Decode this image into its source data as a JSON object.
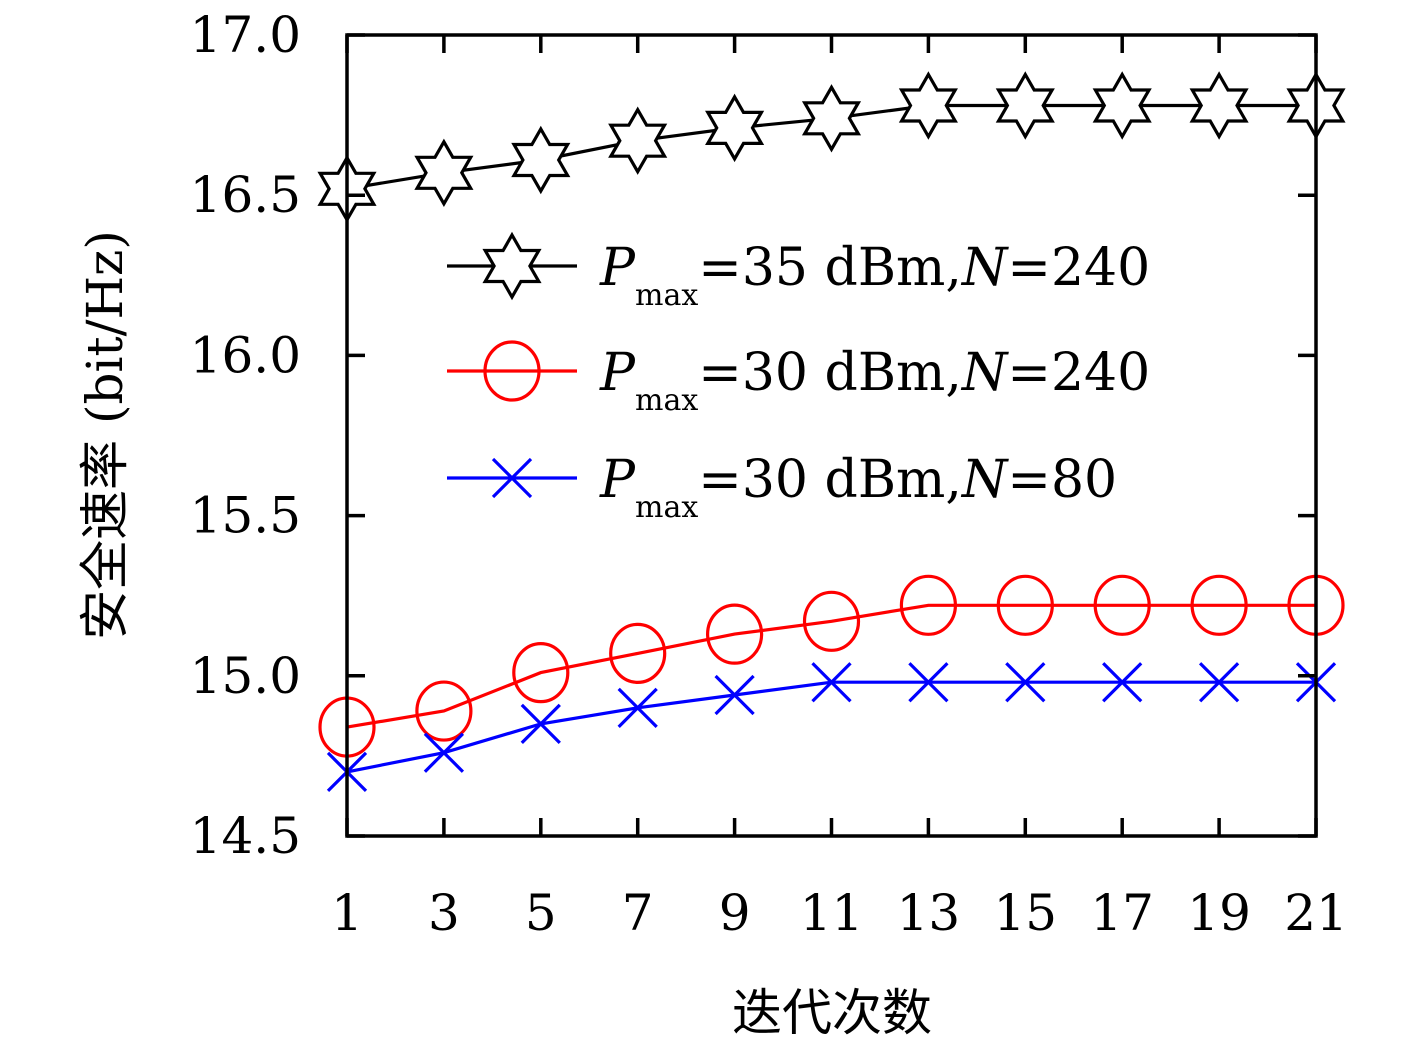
{
  "chart_data": {
    "type": "line",
    "title": "",
    "xlabel": "迭代次数",
    "ylabel": "安全速率 (bit/Hz)",
    "x": [
      1,
      3,
      5,
      7,
      9,
      11,
      13,
      15,
      17,
      19,
      21
    ],
    "x_tick_labels": [
      "1",
      "3",
      "5",
      "7",
      "9",
      "11",
      "13",
      "15",
      "17",
      "19",
      "21"
    ],
    "xlim": [
      1,
      21
    ],
    "ylim": [
      14.5,
      17.0
    ],
    "y_ticks": [
      14.5,
      15.0,
      15.5,
      16.0,
      16.5,
      17.0
    ],
    "y_tick_labels": [
      "14.5",
      "15.0",
      "15.5",
      "16.0",
      "16.5",
      "17.0"
    ],
    "grid": false,
    "legend_position": "upper-center",
    "series": [
      {
        "label_parts": {
          "var": "P",
          "sub": "max",
          "mid": "=35 dBm,",
          "var2": "N",
          "tail": "=240"
        },
        "color": "#000000",
        "marker": "hexagram",
        "values": [
          16.52,
          16.57,
          16.61,
          16.67,
          16.71,
          16.74,
          16.78,
          16.78,
          16.78,
          16.78,
          16.78
        ]
      },
      {
        "label_parts": {
          "var": "P",
          "sub": "max",
          "mid": "=30 dBm,",
          "var2": "N",
          "tail": "=240"
        },
        "color": "#ff0000",
        "marker": "circle",
        "values": [
          14.84,
          14.89,
          15.01,
          15.07,
          15.13,
          15.17,
          15.22,
          15.22,
          15.22,
          15.22,
          15.22
        ]
      },
      {
        "label_parts": {
          "var": "P",
          "sub": "max",
          "mid": "=30 dBm,",
          "var2": "N",
          "tail": "=80"
        },
        "color": "#0000ff",
        "marker": "x",
        "values": [
          14.7,
          14.76,
          14.85,
          14.9,
          14.94,
          14.98,
          14.98,
          14.98,
          14.98,
          14.98,
          14.98
        ]
      }
    ]
  }
}
